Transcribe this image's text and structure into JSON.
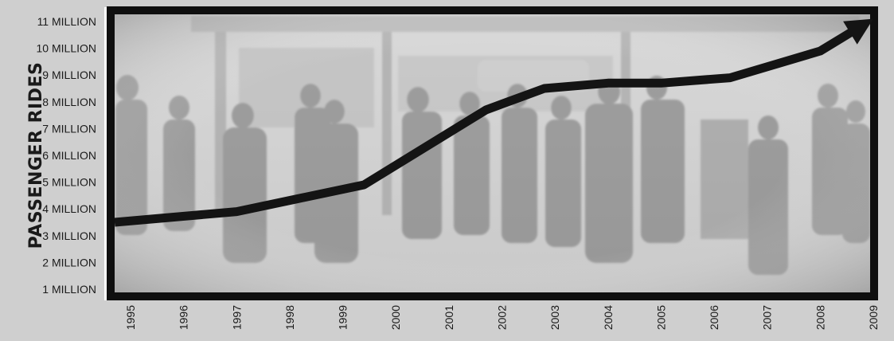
{
  "colors": {
    "page_background": "#cfcfcf",
    "frame": "#0f0f0f",
    "line": "#141414",
    "photo_tint": "#dcdcdc"
  },
  "chart_data": {
    "type": "line",
    "title": "",
    "xlabel": "",
    "ylabel": "PASSENGER RIDES",
    "background": "faded photograph of people waiting at a transit stop",
    "xlim": [
      1995,
      2009
    ],
    "ylim": [
      0,
      11000000
    ],
    "x_ticks": [
      "1995",
      "1996",
      "1997",
      "1998",
      "1999",
      "2000",
      "2001",
      "2002",
      "2003",
      "2004",
      "2005",
      "2006",
      "2007",
      "2008",
      "2009"
    ],
    "y_ticks": [
      {
        "value": 1000000,
        "label": "1 MILLION"
      },
      {
        "value": 2000000,
        "label": "2 MILLION"
      },
      {
        "value": 3000000,
        "label": "3 MILLION"
      },
      {
        "value": 4000000,
        "label": "4 MILLION"
      },
      {
        "value": 5000000,
        "label": "5 MILLION"
      },
      {
        "value": 6000000,
        "label": "6 MILLION"
      },
      {
        "value": 7000000,
        "label": "7 MILLION"
      },
      {
        "value": 8000000,
        "label": "8 MILLION"
      },
      {
        "value": 9000000,
        "label": "9 MILLION"
      },
      {
        "value": 10000000,
        "label": "10 MILLION"
      },
      {
        "value": 11000000,
        "label": "11 MILLION"
      }
    ],
    "series": [
      {
        "x": [
          1995,
          1997,
          1999.4,
          2001.7,
          2002.8,
          2004,
          2005,
          2006.3,
          2008,
          2009
        ],
        "y": [
          3500000,
          3900000,
          4900000,
          7700000,
          8500000,
          8700000,
          8700000,
          8900000,
          9900000,
          11100000
        ]
      }
    ],
    "grid": false,
    "arrow_at_end": true
  }
}
